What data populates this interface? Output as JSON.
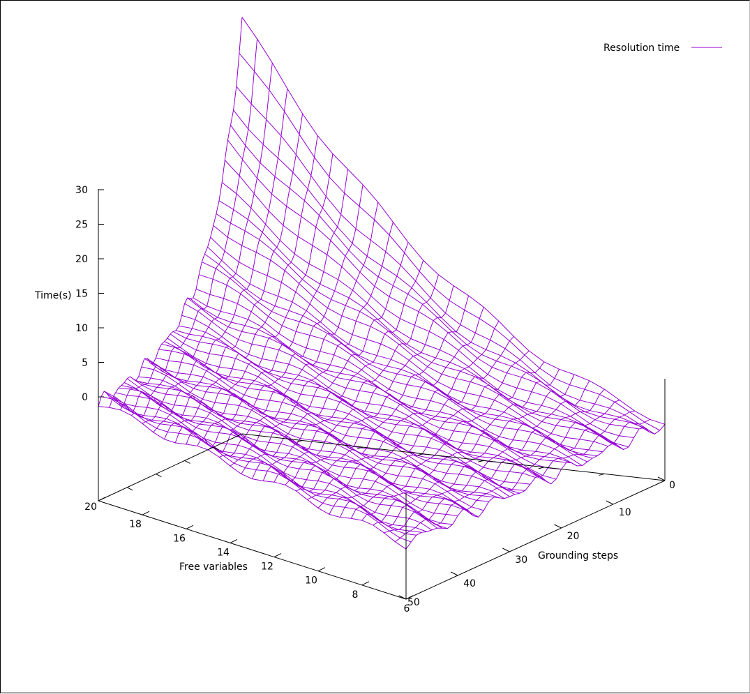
{
  "chart_data": {
    "type": "surface3d",
    "title": "",
    "legend": {
      "label": "Resolution time",
      "placement": "top-right"
    },
    "color": "#9400d3",
    "xlabel": "Free variables",
    "ylabel": "Grounding steps",
    "zlabel": "Time(s)",
    "x_ticks": [
      20,
      18,
      16,
      14,
      12,
      10,
      8,
      6
    ],
    "y_ticks": [
      0,
      10,
      20,
      30,
      40,
      50
    ],
    "z_ticks": [
      0,
      5,
      10,
      15,
      20,
      25,
      30
    ],
    "xlim": [
      6,
      20
    ],
    "ylim": [
      0,
      50
    ],
    "zlim": [
      0,
      30
    ],
    "grid_x": [
      20,
      19,
      18,
      17,
      16,
      15,
      14,
      13,
      12,
      11,
      10,
      9,
      8,
      7,
      6
    ],
    "grid_y": [
      0,
      5,
      10,
      15,
      20,
      25,
      30,
      35,
      40,
      45,
      50
    ],
    "z_samples": [
      [
        26,
        25,
        25,
        24,
        22,
        21,
        19,
        17,
        16,
        15,
        14,
        13,
        13,
        12,
        12,
        12,
        11,
        10,
        9,
        8,
        7,
        7,
        6,
        6,
        5,
        5,
        4,
        4,
        4,
        4,
        3,
        3,
        3,
        3,
        3,
        3,
        2,
        2,
        2,
        2,
        2,
        2,
        2,
        2,
        2,
        2,
        2,
        2,
        2,
        2
      ],
      [
        25,
        24,
        24,
        23,
        21,
        20,
        18,
        16,
        15,
        14,
        13,
        12,
        12,
        11,
        11,
        11,
        10,
        9,
        8,
        7,
        6,
        6,
        5,
        5,
        5,
        4,
        4,
        4,
        3,
        3,
        3,
        3,
        3,
        3,
        2,
        2,
        2,
        2,
        2,
        2,
        2,
        2,
        2,
        2,
        2,
        2,
        2,
        2,
        2,
        2
      ],
      [
        23,
        22,
        21,
        20,
        19,
        18,
        17,
        15,
        14,
        13,
        12,
        11,
        11,
        10,
        10,
        10,
        9,
        8,
        7,
        6,
        6,
        5,
        5,
        4,
        4,
        4,
        3,
        3,
        3,
        3,
        3,
        3,
        2,
        2,
        2,
        2,
        2,
        2,
        2,
        2,
        2,
        2,
        2,
        2,
        2,
        2,
        2,
        2,
        2,
        2
      ],
      [
        21,
        20,
        19,
        19,
        18,
        17,
        16,
        14,
        13,
        12,
        11,
        11,
        10,
        10,
        9,
        9,
        8,
        7,
        7,
        6,
        5,
        5,
        4,
        4,
        4,
        3,
        3,
        3,
        3,
        3,
        2,
        2,
        2,
        2,
        2,
        2,
        2,
        2,
        2,
        2,
        2,
        2,
        2,
        2,
        2,
        2,
        2,
        2,
        2,
        2
      ]
    ]
  }
}
